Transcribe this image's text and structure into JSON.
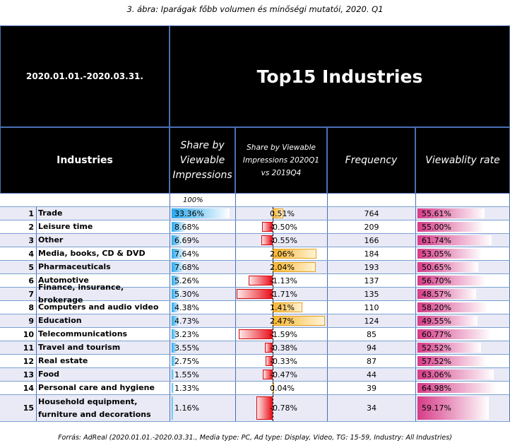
{
  "caption": "3. ábra: Iparágak főbb volumen és minőségi mutatói, 2020. Q1",
  "period": "2020.01.01.-2020.03.31.",
  "title": "Top15 Industries",
  "headers": {
    "industries": "Industries",
    "share": "Share by Viewable Impressions",
    "change": "Share by Viewable Impressions 2020Q1 vs 2019Q4",
    "frequency": "Frequency",
    "viewability": "Viewablity rate"
  },
  "total_share": "100%",
  "footer": "Forrás: AdReal (2020.01.01.-2020.03.31., Media type: PC, Ad type: Display, Video, TG: 15-59, Industry: All Industries)",
  "colors": {
    "share_bar": "#2aa9ee",
    "positive_change": "#f7b731",
    "negative_change": "#e8111b",
    "viewability_bar": "#d63b88"
  },
  "chart_data": {
    "type": "table",
    "rows": [
      {
        "rank": "1",
        "name": "Trade",
        "share": 33.36,
        "share_label": "33.36%",
        "change": 0.51,
        "change_label": "0.51%",
        "frequency": "764",
        "viewability": 55.61,
        "viewability_label": "55.61%"
      },
      {
        "rank": "2",
        "name": "Leisure time",
        "share": 8.68,
        "share_label": "8.68%",
        "change": -0.5,
        "change_label": "-0.50%",
        "frequency": "209",
        "viewability": 55.0,
        "viewability_label": "55.00%"
      },
      {
        "rank": "3",
        "name": "Other",
        "share": 6.69,
        "share_label": "6.69%",
        "change": -0.55,
        "change_label": "-0.55%",
        "frequency": "166",
        "viewability": 61.74,
        "viewability_label": "61.74%"
      },
      {
        "rank": "4",
        "name": "Media, books, CD & DVD",
        "share": 7.64,
        "share_label": "7.64%",
        "change": 2.06,
        "change_label": "2.06%",
        "frequency": "184",
        "viewability": 53.05,
        "viewability_label": "53.05%"
      },
      {
        "rank": "5",
        "name": "Pharmaceuticals",
        "share": 7.68,
        "share_label": "7.68%",
        "change": 2.04,
        "change_label": "2.04%",
        "frequency": "193",
        "viewability": 50.65,
        "viewability_label": "50.65%"
      },
      {
        "rank": "6",
        "name": "Automotive",
        "share": 5.26,
        "share_label": "5.26%",
        "change": -1.13,
        "change_label": "-1.13%",
        "frequency": "137",
        "viewability": 56.7,
        "viewability_label": "56.70%"
      },
      {
        "rank": "7",
        "name": "Finance, insurance, brokerage",
        "share": 5.3,
        "share_label": "5.30%",
        "change": -1.71,
        "change_label": "-1.71%",
        "frequency": "135",
        "viewability": 48.57,
        "viewability_label": "48.57%"
      },
      {
        "rank": "8",
        "name": "Computers and audio video",
        "share": 4.38,
        "share_label": "4.38%",
        "change": 1.41,
        "change_label": "1.41%",
        "frequency": "110",
        "viewability": 58.2,
        "viewability_label": "58.20%"
      },
      {
        "rank": "9",
        "name": "Education",
        "share": 4.73,
        "share_label": "4.73%",
        "change": 2.47,
        "change_label": "2.47%",
        "frequency": "124",
        "viewability": 49.55,
        "viewability_label": "49.55%"
      },
      {
        "rank": "10",
        "name": "Telecommunications",
        "share": 3.23,
        "share_label": "3.23%",
        "change": -1.59,
        "change_label": "-1.59%",
        "frequency": "85",
        "viewability": 60.77,
        "viewability_label": "60.77%"
      },
      {
        "rank": "11",
        "name": "Travel and tourism",
        "share": 3.55,
        "share_label": "3.55%",
        "change": -0.38,
        "change_label": "-0.38%",
        "frequency": "94",
        "viewability": 52.52,
        "viewability_label": "52.52%"
      },
      {
        "rank": "12",
        "name": "Real estate",
        "share": 2.75,
        "share_label": "2.75%",
        "change": -0.33,
        "change_label": "-0.33%",
        "frequency": "87",
        "viewability": 57.52,
        "viewability_label": "57.52%"
      },
      {
        "rank": "13",
        "name": "Food",
        "share": 1.55,
        "share_label": "1.55%",
        "change": -0.47,
        "change_label": "-0.47%",
        "frequency": "44",
        "viewability": 63.06,
        "viewability_label": "63.06%"
      },
      {
        "rank": "14",
        "name": "Personal care and hygiene",
        "share": 1.33,
        "share_label": "1.33%",
        "change": 0.04,
        "change_label": "0.04%",
        "frequency": "39",
        "viewability": 64.98,
        "viewability_label": "64.98%"
      },
      {
        "rank": "15",
        "name": "Household equipment, furniture and decorations",
        "share": 1.16,
        "share_label": "1.16%",
        "change": -0.78,
        "change_label": "-0.78%",
        "frequency": "34",
        "viewability": 59.17,
        "viewability_label": "59.17%"
      }
    ]
  }
}
